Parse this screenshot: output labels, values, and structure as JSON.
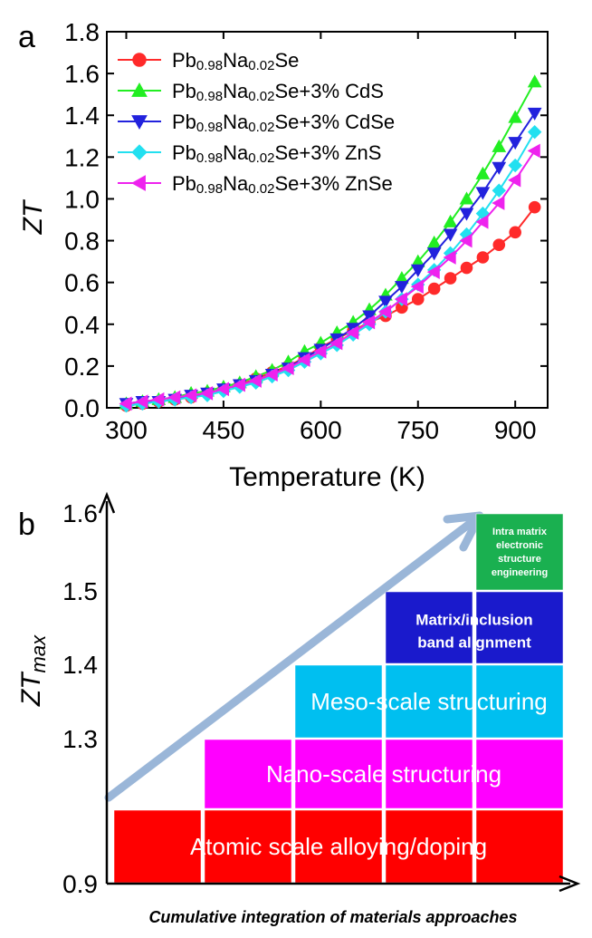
{
  "chart_data": [
    {
      "panel": "a",
      "type": "line",
      "xlabel": "Temperature (K)",
      "ylabel": "ZT",
      "xlim": [
        270,
        950
      ],
      "ylim": [
        0.0,
        1.8
      ],
      "xticks": [
        300,
        450,
        600,
        750,
        900
      ],
      "yticks": [
        0.0,
        0.2,
        0.4,
        0.6,
        0.8,
        1.0,
        1.2,
        1.4,
        1.6,
        1.8
      ],
      "legend_position": "top-left",
      "x": [
        300,
        325,
        350,
        375,
        400,
        425,
        450,
        475,
        500,
        525,
        550,
        575,
        600,
        625,
        650,
        675,
        700,
        725,
        750,
        775,
        800,
        825,
        850,
        875,
        900,
        930
      ],
      "series": [
        {
          "name": "Pb0.98Na0.02Se",
          "color": "#ff2a2a",
          "marker": "circle",
          "values": [
            0.01,
            0.02,
            0.03,
            0.04,
            0.05,
            0.07,
            0.09,
            0.11,
            0.14,
            0.17,
            0.2,
            0.24,
            0.29,
            0.33,
            0.37,
            0.41,
            0.44,
            0.48,
            0.52,
            0.57,
            0.62,
            0.67,
            0.72,
            0.78,
            0.84,
            0.96
          ]
        },
        {
          "name": "Pb0.98Na0.02Se+3% CdS",
          "color": "#22ee22",
          "marker": "triangle-up",
          "values": [
            0.02,
            0.03,
            0.04,
            0.05,
            0.07,
            0.08,
            0.1,
            0.12,
            0.15,
            0.18,
            0.22,
            0.27,
            0.31,
            0.36,
            0.41,
            0.47,
            0.54,
            0.62,
            0.7,
            0.79,
            0.89,
            1.0,
            1.12,
            1.25,
            1.39,
            1.56
          ]
        },
        {
          "name": "Pb0.98Na0.02Se+3% CdSe",
          "color": "#2222dd",
          "marker": "triangle-down",
          "values": [
            0.02,
            0.03,
            0.03,
            0.04,
            0.06,
            0.07,
            0.09,
            0.11,
            0.13,
            0.16,
            0.19,
            0.24,
            0.28,
            0.33,
            0.38,
            0.44,
            0.51,
            0.58,
            0.66,
            0.74,
            0.83,
            0.93,
            1.03,
            1.15,
            1.27,
            1.41
          ]
        },
        {
          "name": "Pb0.98Na0.02Se+3% ZnS",
          "color": "#22e0f0",
          "marker": "diamond",
          "values": [
            0.01,
            0.02,
            0.03,
            0.04,
            0.05,
            0.06,
            0.08,
            0.1,
            0.12,
            0.15,
            0.18,
            0.22,
            0.26,
            0.3,
            0.35,
            0.4,
            0.46,
            0.52,
            0.59,
            0.66,
            0.74,
            0.83,
            0.93,
            1.04,
            1.16,
            1.32
          ]
        },
        {
          "name": "Pb0.98Na0.02Se+3% ZnSe",
          "color": "#ee22ee",
          "marker": "triangle-left",
          "values": [
            0.02,
            0.03,
            0.04,
            0.05,
            0.06,
            0.07,
            0.09,
            0.11,
            0.13,
            0.16,
            0.19,
            0.23,
            0.27,
            0.31,
            0.36,
            0.41,
            0.46,
            0.52,
            0.58,
            0.65,
            0.72,
            0.8,
            0.89,
            0.98,
            1.09,
            1.23
          ]
        }
      ]
    },
    {
      "panel": "b",
      "type": "bar",
      "ylabel": "ZTmax",
      "xlabel": "Cumulative integration of materials approaches",
      "ylim": [
        0.9,
        1.65
      ],
      "yticks_labels": [
        "0.9",
        "1.3",
        "1.4",
        "1.5",
        "1.6"
      ],
      "columns": 5,
      "tiers": [
        {
          "label": "Atomic scale  alloying/doping",
          "color": "#ff0000",
          "from_column": 1,
          "top": 1.2
        },
        {
          "label": "Nano-scale  structuring",
          "color": "#ff00ff",
          "from_column": 2,
          "top": 1.3
        },
        {
          "label": "Meso-scale  structuring",
          "color": "#00bff0",
          "from_column": 3,
          "top": 1.4
        },
        {
          "label": "Matrix/inclusion band alignment",
          "color": "#1a1acc",
          "from_column": 4,
          "top": 1.5
        },
        {
          "label": "Intra matrix electronic structure engineering",
          "color": "#1ab050",
          "from_column": 5,
          "top": 1.6
        }
      ]
    }
  ],
  "labels": {
    "panel_a": "a",
    "panel_b": "b",
    "zt_a_main": "ZT",
    "zt_b_main": "ZT",
    "zt_b_sub": "max",
    "tier4_line1": "Matrix/inclusion",
    "tier4_line2": "band alignment",
    "tier5_line1": "Intra matrix",
    "tier5_line2": "electronic",
    "tier5_line3": "structure",
    "tier5_line4": "engineering",
    "legend_a": [
      {
        "main": "Pb",
        "sub1": "0.98",
        "mid": "Na",
        "sub2": "0.02",
        "tail": "Se"
      },
      {
        "main": "Pb",
        "sub1": "0.98",
        "mid": "Na",
        "sub2": "0.02",
        "tail": "Se+3% CdS"
      },
      {
        "main": "Pb",
        "sub1": "0.98",
        "mid": "Na",
        "sub2": "0.02",
        "tail": "Se+3% CdSe"
      },
      {
        "main": "Pb",
        "sub1": "0.98",
        "mid": "Na",
        "sub2": "0.02",
        "tail": "Se+3% ZnS"
      },
      {
        "main": "Pb",
        "sub1": "0.98",
        "mid": "Na",
        "sub2": "0.02",
        "tail": "Se+3% ZnSe"
      }
    ]
  }
}
